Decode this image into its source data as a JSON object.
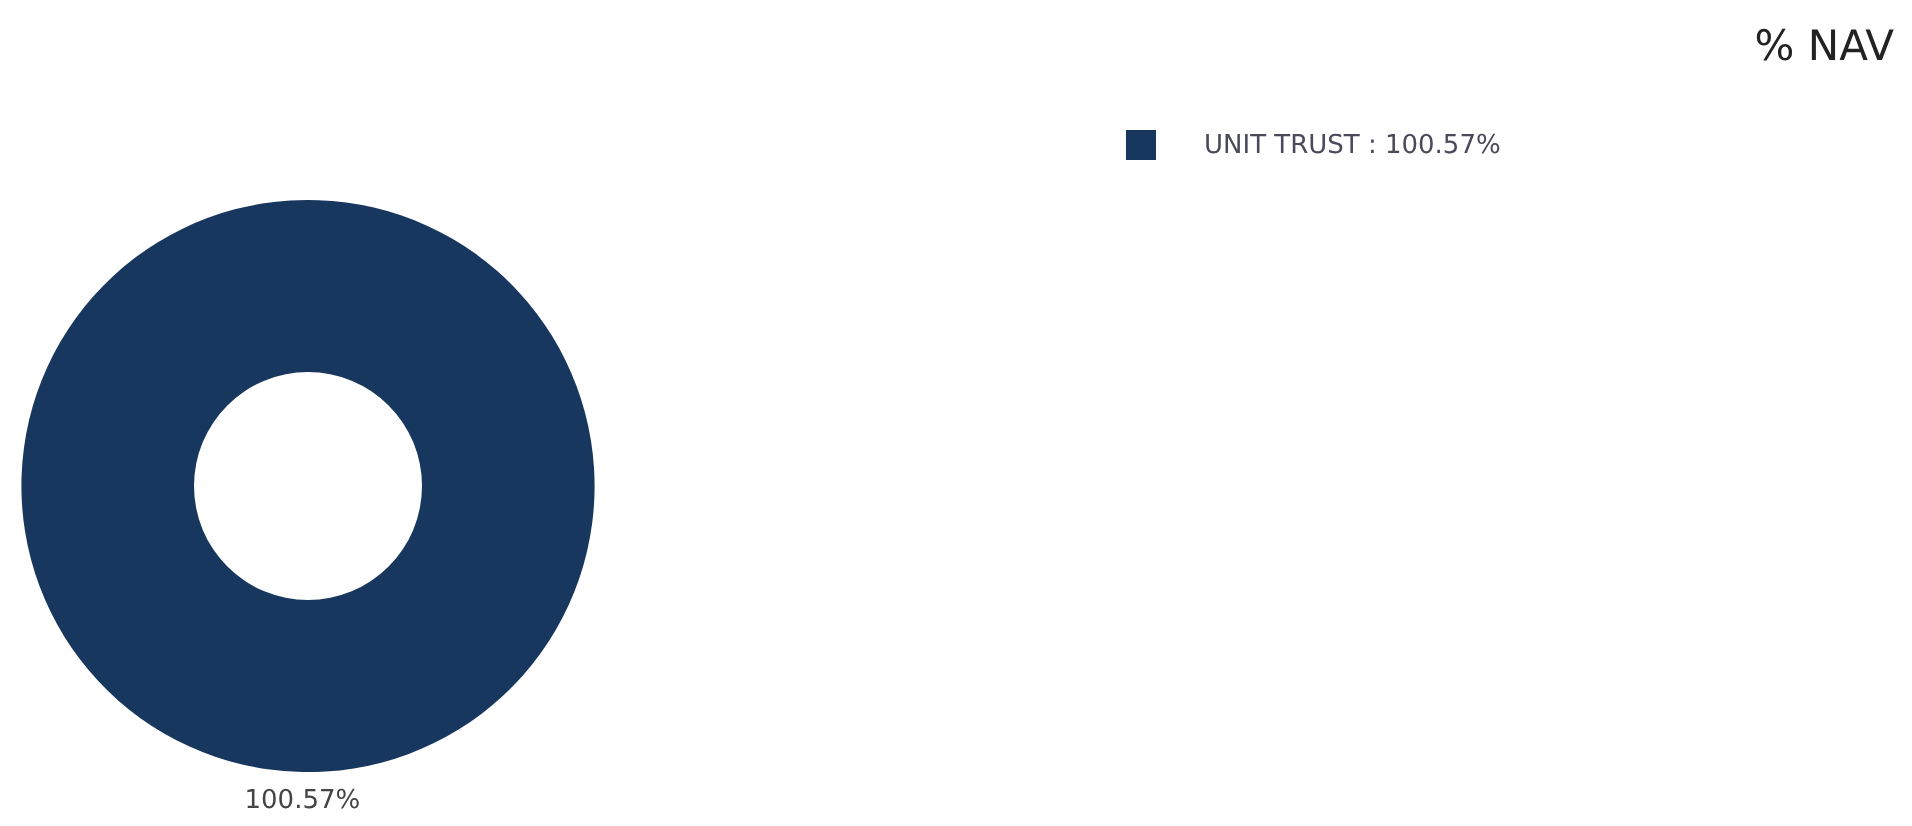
{
  "chart_data": {
    "type": "donut",
    "title": "% NAV",
    "categories": [
      "UNIT TRUST"
    ],
    "values": [
      100.57
    ],
    "colors": [
      "#18375e"
    ],
    "value_labels": [
      "100.57%"
    ],
    "legend": "top right"
  }
}
